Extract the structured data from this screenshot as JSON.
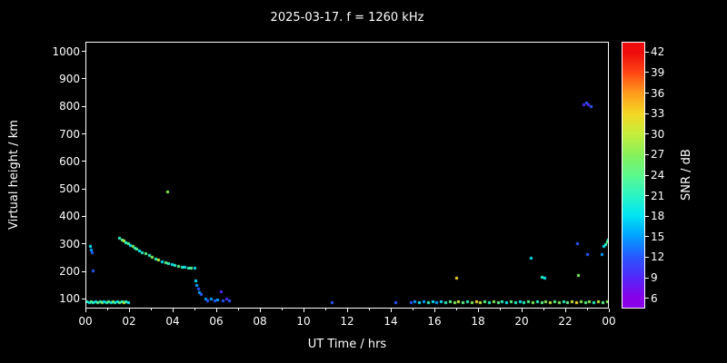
{
  "title": "2025-03-17. f = 1260 kHz",
  "colors": {
    "background": "#000000",
    "foreground": "#ffffff"
  },
  "axes": {
    "xlabel": "UT Time / hrs",
    "ylabel": "Virtual height / km",
    "x_tick_values": [
      0,
      2,
      4,
      6,
      8,
      10,
      12,
      14,
      16,
      18,
      20,
      22,
      24
    ],
    "x_tick_labels": [
      "00",
      "02",
      "04",
      "06",
      "08",
      "10",
      "12",
      "14",
      "16",
      "18",
      "20",
      "22",
      "00"
    ],
    "y_tick_values": [
      100,
      200,
      300,
      400,
      500,
      600,
      700,
      800,
      900,
      1000
    ],
    "xlim": [
      0,
      24
    ],
    "ylim": [
      65,
      1035
    ]
  },
  "colorbar": {
    "label": "SNR / dB",
    "tick_values": [
      6,
      9,
      12,
      15,
      18,
      21,
      24,
      27,
      30,
      33,
      36,
      39,
      42
    ],
    "range": [
      4.5,
      43.5
    ],
    "stops": [
      {
        "v": 6,
        "c": "#8800e8"
      },
      {
        "v": 9,
        "c": "#5128f8"
      },
      {
        "v": 12,
        "c": "#2858ff"
      },
      {
        "v": 15,
        "c": "#00a0ff"
      },
      {
        "v": 18,
        "c": "#00e4f4"
      },
      {
        "v": 21,
        "c": "#2af4c4"
      },
      {
        "v": 24,
        "c": "#5cf88c"
      },
      {
        "v": 27,
        "c": "#86f05a"
      },
      {
        "v": 30,
        "c": "#c4ee3c"
      },
      {
        "v": 33,
        "c": "#f4d824"
      },
      {
        "v": 36,
        "c": "#ff9c1c"
      },
      {
        "v": 39,
        "c": "#ff4814"
      },
      {
        "v": 42,
        "c": "#ee0c0c"
      }
    ]
  },
  "chart_data": {
    "type": "scatter",
    "title": "2025-03-17. f = 1260 kHz",
    "xlabel": "UT Time / hrs",
    "ylabel": "Virtual height / km",
    "zlabel": "SNR / dB",
    "xlim": [
      0,
      24
    ],
    "ylim": [
      65,
      1035
    ],
    "zlim": [
      6,
      42
    ],
    "point_format": "[ut_hours, virtual_height_km, snr_db]",
    "points": [
      [
        0.2,
        292,
        18
      ],
      [
        0.25,
        280,
        15
      ],
      [
        0.3,
        268,
        12
      ],
      [
        0.35,
        202,
        12
      ],
      [
        0.05,
        90,
        21
      ],
      [
        0.15,
        88,
        18
      ],
      [
        0.25,
        90,
        24
      ],
      [
        0.35,
        88,
        21
      ],
      [
        0.45,
        90,
        18
      ],
      [
        0.55,
        88,
        24
      ],
      [
        0.65,
        90,
        21
      ],
      [
        0.75,
        88,
        27
      ],
      [
        0.85,
        90,
        18
      ],
      [
        0.95,
        88,
        21
      ],
      [
        1.05,
        90,
        24
      ],
      [
        1.15,
        88,
        18
      ],
      [
        1.25,
        90,
        27
      ],
      [
        1.35,
        88,
        21
      ],
      [
        1.45,
        90,
        18
      ],
      [
        1.55,
        88,
        24
      ],
      [
        1.65,
        90,
        21
      ],
      [
        1.75,
        88,
        30
      ],
      [
        1.85,
        90,
        21
      ],
      [
        1.95,
        88,
        18
      ],
      [
        1.55,
        322,
        21
      ],
      [
        1.65,
        317,
        24
      ],
      [
        1.75,
        312,
        30
      ],
      [
        1.85,
        307,
        21
      ],
      [
        1.95,
        302,
        24
      ],
      [
        2.05,
        297,
        18
      ],
      [
        2.15,
        292,
        27
      ],
      [
        2.25,
        287,
        21
      ],
      [
        2.35,
        282,
        24
      ],
      [
        2.45,
        277,
        18
      ],
      [
        2.6,
        271,
        21
      ],
      [
        2.75,
        265,
        24
      ],
      [
        2.9,
        259,
        21
      ],
      [
        3.05,
        253,
        27
      ],
      [
        3.2,
        248,
        21
      ],
      [
        3.35,
        243,
        30
      ],
      [
        3.5,
        238,
        18
      ],
      [
        3.65,
        233,
        24
      ],
      [
        3.8,
        229,
        21
      ],
      [
        3.95,
        226,
        18
      ],
      [
        4.1,
        223,
        21
      ],
      [
        4.25,
        220,
        24
      ],
      [
        4.4,
        218,
        21
      ],
      [
        4.55,
        216,
        18
      ],
      [
        4.7,
        215,
        21
      ],
      [
        4.85,
        214,
        24
      ],
      [
        5.0,
        213,
        18
      ],
      [
        3.75,
        492,
        27
      ],
      [
        5.05,
        168,
        18
      ],
      [
        5.1,
        152,
        15
      ],
      [
        5.15,
        138,
        12
      ],
      [
        5.2,
        126,
        15
      ],
      [
        5.3,
        117,
        12
      ],
      [
        5.5,
        100,
        15
      ],
      [
        5.6,
        96,
        12
      ],
      [
        5.75,
        100,
        15
      ],
      [
        5.9,
        95,
        12
      ],
      [
        6.05,
        99,
        15
      ],
      [
        6.2,
        128,
        9
      ],
      [
        6.3,
        95,
        12
      ],
      [
        6.45,
        100,
        9
      ],
      [
        6.6,
        96,
        12
      ],
      [
        11.3,
        88,
        12
      ],
      [
        14.2,
        88,
        12
      ],
      [
        14.9,
        88,
        12
      ],
      [
        15.1,
        90,
        15
      ],
      [
        15.3,
        88,
        18
      ],
      [
        15.5,
        90,
        15
      ],
      [
        15.7,
        88,
        21
      ],
      [
        15.9,
        90,
        18
      ],
      [
        16.1,
        88,
        15
      ],
      [
        16.3,
        90,
        18
      ],
      [
        16.5,
        88,
        21
      ],
      [
        16.7,
        90,
        24
      ],
      [
        16.9,
        88,
        27
      ],
      [
        17.1,
        90,
        30
      ],
      [
        17.3,
        88,
        24
      ],
      [
        17.5,
        90,
        21
      ],
      [
        17.7,
        88,
        27
      ],
      [
        17.9,
        90,
        33
      ],
      [
        18.1,
        88,
        30
      ],
      [
        18.3,
        90,
        24
      ],
      [
        18.5,
        88,
        21
      ],
      [
        18.7,
        90,
        27
      ],
      [
        18.9,
        88,
        24
      ],
      [
        19.1,
        90,
        21
      ],
      [
        19.3,
        88,
        18
      ],
      [
        19.5,
        90,
        24
      ],
      [
        19.7,
        88,
        21
      ],
      [
        19.9,
        90,
        18
      ],
      [
        20.1,
        88,
        21
      ],
      [
        20.3,
        90,
        24
      ],
      [
        20.5,
        88,
        27
      ],
      [
        20.7,
        90,
        21
      ],
      [
        20.9,
        88,
        24
      ],
      [
        21.1,
        90,
        27
      ],
      [
        21.3,
        88,
        30
      ],
      [
        21.5,
        90,
        24
      ],
      [
        21.7,
        88,
        27
      ],
      [
        21.9,
        90,
        21
      ],
      [
        22.1,
        88,
        24
      ],
      [
        22.3,
        90,
        30
      ],
      [
        22.5,
        88,
        33
      ],
      [
        22.7,
        90,
        27
      ],
      [
        22.9,
        88,
        24
      ],
      [
        23.1,
        90,
        27
      ],
      [
        23.3,
        88,
        21
      ],
      [
        23.5,
        90,
        30
      ],
      [
        23.7,
        88,
        24
      ],
      [
        23.9,
        90,
        27
      ],
      [
        17.0,
        176,
        33
      ],
      [
        20.4,
        250,
        18
      ],
      [
        20.9,
        182,
        21
      ],
      [
        21.05,
        178,
        18
      ],
      [
        22.55,
        302,
        12
      ],
      [
        22.6,
        186,
        27
      ],
      [
        23.0,
        263,
        12
      ],
      [
        23.65,
        262,
        15
      ],
      [
        22.85,
        808,
        9
      ],
      [
        22.95,
        813,
        12
      ],
      [
        23.05,
        806,
        9
      ],
      [
        23.15,
        800,
        12
      ],
      [
        23.75,
        292,
        18
      ],
      [
        23.85,
        300,
        21
      ],
      [
        23.9,
        308,
        24
      ],
      [
        23.95,
        315,
        21
      ],
      [
        24.0,
        320,
        18
      ]
    ]
  }
}
